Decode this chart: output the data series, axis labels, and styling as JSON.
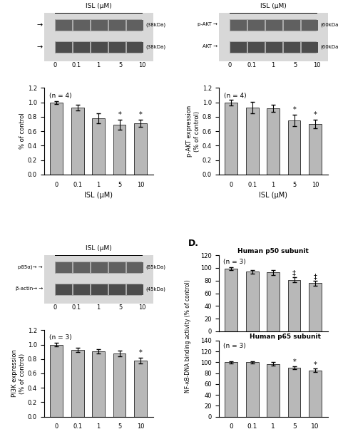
{
  "categories": [
    "0",
    "0.1",
    "1",
    "5",
    "10"
  ],
  "bar_color": "#b8b8b8",
  "panel_A_values": [
    1.0,
    0.93,
    0.78,
    0.69,
    0.71
  ],
  "panel_A_errors": [
    0.02,
    0.04,
    0.07,
    0.07,
    0.05
  ],
  "panel_A_sig": [
    false,
    false,
    false,
    true,
    true
  ],
  "panel_A_ylabel": "% of control",
  "panel_A_n": "(n = 4)",
  "panel_A_ylim": [
    0.0,
    1.2
  ],
  "panel_A_yticks": [
    0.0,
    0.2,
    0.4,
    0.6,
    0.8,
    1.0,
    1.2
  ],
  "panel_A_blot_label1": "(38kDa)",
  "panel_A_blot_label2": "(38kDa)",
  "panel_B_values": [
    1.0,
    0.93,
    0.92,
    0.75,
    0.7
  ],
  "panel_B_errors": [
    0.04,
    0.08,
    0.05,
    0.08,
    0.06
  ],
  "panel_B_sig": [
    false,
    false,
    false,
    true,
    true
  ],
  "panel_B_ylabel": "p-AKT expression\n(% of control)",
  "panel_B_n": "(n = 4)",
  "panel_B_ylim": [
    0.0,
    1.2
  ],
  "panel_B_yticks": [
    0.0,
    0.2,
    0.4,
    0.6,
    0.8,
    1.0,
    1.2
  ],
  "panel_B_blot_label1": "(60kDa)",
  "panel_B_blot_label2": "(60kDa)",
  "panel_B_row1_label": "p-AKT",
  "panel_B_row2_label": "AKT",
  "panel_C_values": [
    1.0,
    0.93,
    0.91,
    0.88,
    0.78
  ],
  "panel_C_errors": [
    0.02,
    0.03,
    0.03,
    0.04,
    0.04
  ],
  "panel_C_sig": [
    false,
    false,
    false,
    false,
    true
  ],
  "panel_C_ylabel": "PI3K expression\n(% of control)",
  "panel_C_n": "(n = 3)",
  "panel_C_ylim": [
    0.0,
    1.2
  ],
  "panel_C_yticks": [
    0.0,
    0.2,
    0.4,
    0.6,
    0.8,
    1.0,
    1.2
  ],
  "panel_C_blot_label1": "(85kDa)",
  "panel_C_blot_label2": "(45kDa)",
  "panel_C_row1_label": "p85α)→",
  "panel_C_row2_label": "β-actin→",
  "panel_D_p50_values": [
    99,
    94,
    93,
    81,
    76
  ],
  "panel_D_p50_errors": [
    2,
    3,
    4,
    4,
    4
  ],
  "panel_D_p50_sig": [
    false,
    false,
    false,
    true,
    true
  ],
  "panel_D_p50_sig_symbol": "‡",
  "panel_D_p50_title": "Human p50 subunit",
  "panel_D_p50_ylim": [
    0,
    120
  ],
  "panel_D_p50_yticks": [
    0,
    20,
    40,
    60,
    80,
    100,
    120
  ],
  "panel_D_p50_n": "(n = 3)",
  "panel_D_p65_values": [
    100,
    100,
    97,
    90,
    85
  ],
  "panel_D_p65_errors": [
    2,
    2,
    3,
    3,
    3
  ],
  "panel_D_p65_sig": [
    false,
    false,
    false,
    true,
    true
  ],
  "panel_D_p65_sig_symbol": "*",
  "panel_D_p65_title": "Human p65 subunit",
  "panel_D_p65_ylim": [
    0,
    140
  ],
  "panel_D_p65_yticks": [
    0,
    20,
    40,
    60,
    80,
    100,
    120,
    140
  ],
  "panel_D_ylabel": "NF-κB-DNA binding activity (% of control)",
  "panel_D_n": "(n = 3)",
  "isl_label": "ISL (μM)",
  "sig_symbol": "*",
  "background_color": "#ffffff"
}
